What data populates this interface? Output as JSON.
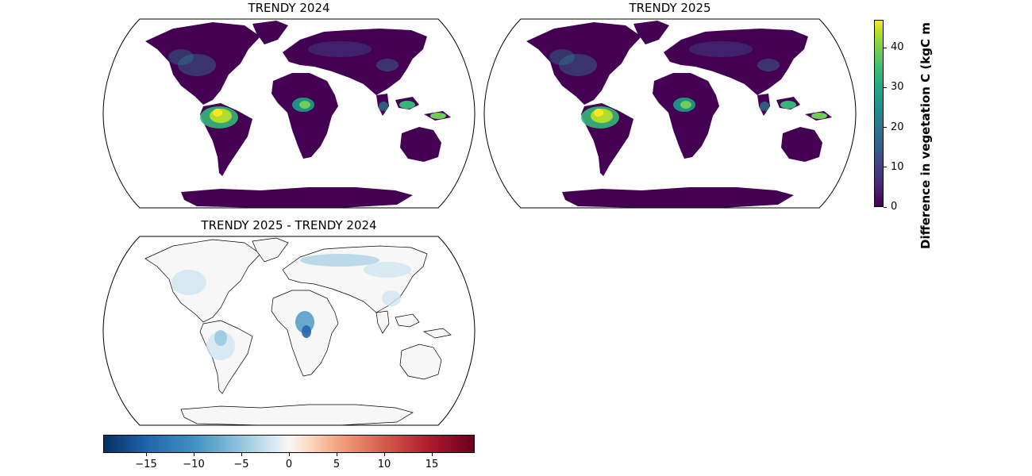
{
  "panels": [
    {
      "title": "TRENDY 2024",
      "cmap": "viridis"
    },
    {
      "title": "TRENDY 2025",
      "cmap": "viridis"
    },
    {
      "title": "TRENDY 2025 - TRENDY 2024",
      "cmap": "RdBu_r"
    }
  ],
  "colorbar_vertical": {
    "label": "Difference in vegetation C (kgC m",
    "ticks": [
      "0",
      "10",
      "20",
      "30",
      "40"
    ],
    "tick_values": [
      0,
      10,
      20,
      30,
      40
    ],
    "range": [
      0,
      47
    ]
  },
  "colorbar_horizontal": {
    "ticks": [
      "−15",
      "−10",
      "−5",
      "0",
      "5",
      "10",
      "15"
    ],
    "tick_values": [
      -15,
      -10,
      -5,
      0,
      5,
      10,
      15
    ],
    "range": [
      -19.5,
      19.5
    ]
  },
  "colors": {
    "viridis_low": "#440154",
    "viridis_high": "#fde725",
    "diff_neutral": "#f7f7f7",
    "diff_negative": "#2166ac"
  }
}
